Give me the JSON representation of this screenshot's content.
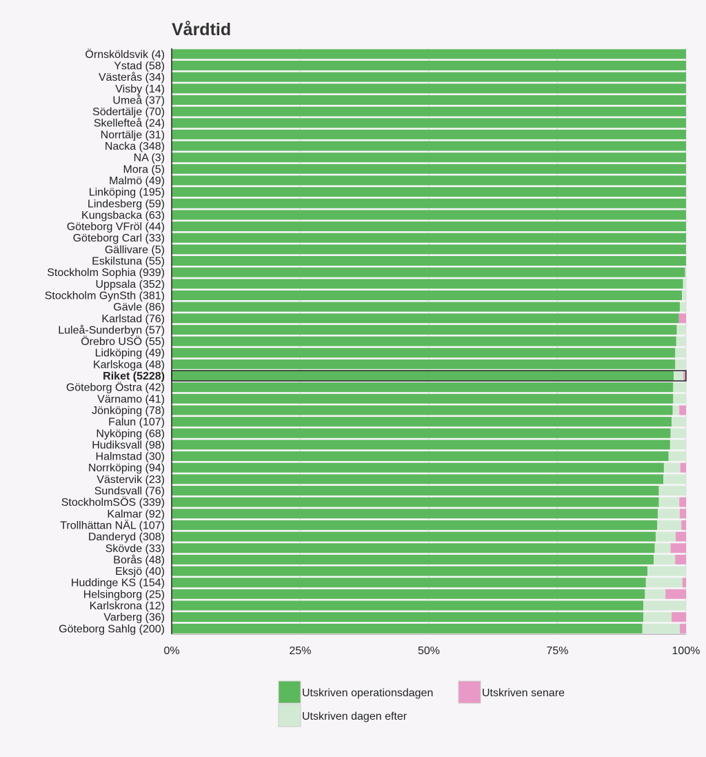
{
  "chart_data": {
    "type": "bar",
    "orientation": "horizontal",
    "stacked": true,
    "title": "Vårdtid",
    "xlim": [
      0,
      100
    ],
    "x_ticks": [
      "0%",
      "25%",
      "50%",
      "75%",
      "100%"
    ],
    "grid": true,
    "legend_position": "bottom",
    "highlight_category": "Riket (5228)",
    "categories": [
      "Örnsköldsvik (4)",
      "Ystad (58)",
      "Västerås (34)",
      "Visby (14)",
      "Umeå (37)",
      "Södertälje (70)",
      "Skellefteå (24)",
      "Norrtälje (31)",
      "Nacka (348)",
      "NA (3)",
      "Mora (5)",
      "Malmö (49)",
      "Linköping (195)",
      "Lindesberg (59)",
      "Kungsbacka (63)",
      "Göteborg VFröl (44)",
      "Göteborg Carl (33)",
      "Gällivare (5)",
      "Eskilstuna (55)",
      "Stockholm Sophia (939)",
      "Uppsala (352)",
      "Stockholm GynSth (381)",
      "Gävle (86)",
      "Karlstad (76)",
      "Luleå-Sunderbyn (57)",
      "Örebro USÖ (55)",
      "Lidköping (49)",
      "Karlskoga (48)",
      "Riket (5228)",
      "Göteborg Östra (42)",
      "Värnamo (41)",
      "Jönköping (78)",
      "Falun (107)",
      "Nyköping (68)",
      "Hudiksvall (98)",
      "Halmstad (30)",
      "Norrköping (94)",
      "Västervik (23)",
      "Sundsvall (76)",
      "StockholmSÖS (339)",
      "Kalmar (92)",
      "Trollhättan NÄL (107)",
      "Danderyd (308)",
      "Skövde (33)",
      "Borås (48)",
      "Eksjö (40)",
      "Huddinge KS (154)",
      "Helsingborg (25)",
      "Karlskrona (12)",
      "Varberg (36)",
      "Göteborg Sahlg (200)"
    ],
    "series": [
      {
        "name": "Utskriven operationsdagen",
        "color": "#5cb85c",
        "values": [
          100,
          100,
          100,
          100,
          100,
          100,
          100,
          100,
          100,
          100,
          100,
          100,
          100,
          100,
          100,
          100,
          100,
          100,
          100,
          99.8,
          99.4,
          99.2,
          98.8,
          98.6,
          98.2,
          98.1,
          97.9,
          97.9,
          97.6,
          97.5,
          97.5,
          97.4,
          97.2,
          97.0,
          96.9,
          96.6,
          95.7,
          95.6,
          94.7,
          94.7,
          94.5,
          94.4,
          94.1,
          93.9,
          93.7,
          92.5,
          92.2,
          92.0,
          91.7,
          91.7,
          91.5
        ]
      },
      {
        "name": "Utskriven dagen efter",
        "color": "#d2ead3",
        "values": [
          0,
          0,
          0,
          0,
          0,
          0,
          0,
          0,
          0,
          0,
          0,
          0,
          0,
          0,
          0,
          0,
          0,
          0,
          0,
          0.2,
          0.6,
          0.8,
          1.2,
          0,
          1.8,
          1.9,
          2.1,
          2.1,
          1.9,
          2.5,
          2.5,
          1.3,
          2.8,
          3.0,
          3.1,
          3.4,
          3.2,
          4.4,
          5.3,
          4.0,
          4.3,
          4.7,
          3.9,
          3.1,
          4.2,
          7.5,
          7.1,
          4.0,
          8.3,
          5.5,
          7.3
        ]
      },
      {
        "name": "Utskriven senare",
        "color": "#e899c6",
        "values": [
          0,
          0,
          0,
          0,
          0,
          0,
          0,
          0,
          0,
          0,
          0,
          0,
          0,
          0,
          0,
          0,
          0,
          0,
          0,
          0,
          0,
          0,
          0,
          1.4,
          0,
          0,
          0,
          0,
          0.5,
          0,
          0,
          1.3,
          0,
          0,
          0,
          0,
          1.1,
          0,
          0,
          1.3,
          1.2,
          0.9,
          2.0,
          3.0,
          2.1,
          0,
          0.7,
          4.0,
          0,
          2.8,
          1.2
        ]
      }
    ]
  }
}
